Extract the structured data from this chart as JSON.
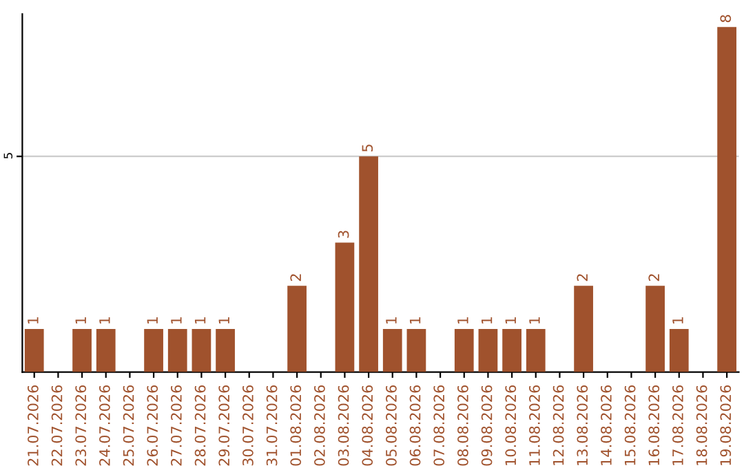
{
  "chart_data": {
    "type": "bar",
    "categories": [
      "21.07.2026",
      "22.07.2026",
      "23.07.2026",
      "24.07.2026",
      "25.07.2026",
      "26.07.2026",
      "27.07.2026",
      "28.07.2026",
      "29.07.2026",
      "30.07.2026",
      "31.07.2026",
      "01.08.2026",
      "02.08.2026",
      "03.08.2026",
      "04.08.2026",
      "05.08.2026",
      "06.08.2026",
      "07.08.2026",
      "08.08.2026",
      "09.08.2026",
      "10.08.2026",
      "11.08.2026",
      "12.08.2026",
      "13.08.2026",
      "14.08.2026",
      "15.08.2026",
      "16.08.2026",
      "17.08.2026",
      "18.08.2026",
      "19.08.2026"
    ],
    "values": [
      1,
      0,
      1,
      1,
      0,
      1,
      1,
      1,
      1,
      0,
      0,
      2,
      0,
      3,
      5,
      1,
      1,
      0,
      1,
      1,
      1,
      1,
      0,
      2,
      0,
      0,
      2,
      1,
      0,
      8
    ],
    "value_labels": [
      "1",
      null,
      "1",
      "1",
      null,
      "1",
      "1",
      "1",
      "1",
      null,
      null,
      "2",
      null,
      "3",
      "5",
      "1",
      "1",
      null,
      "1",
      "1",
      "1",
      "1",
      null,
      "2",
      null,
      null,
      "2",
      "1",
      null,
      "8"
    ],
    "color": "#a0522d",
    "ylim": [
      0,
      8.3
    ],
    "yticks": [
      5
    ],
    "grid": "y"
  }
}
